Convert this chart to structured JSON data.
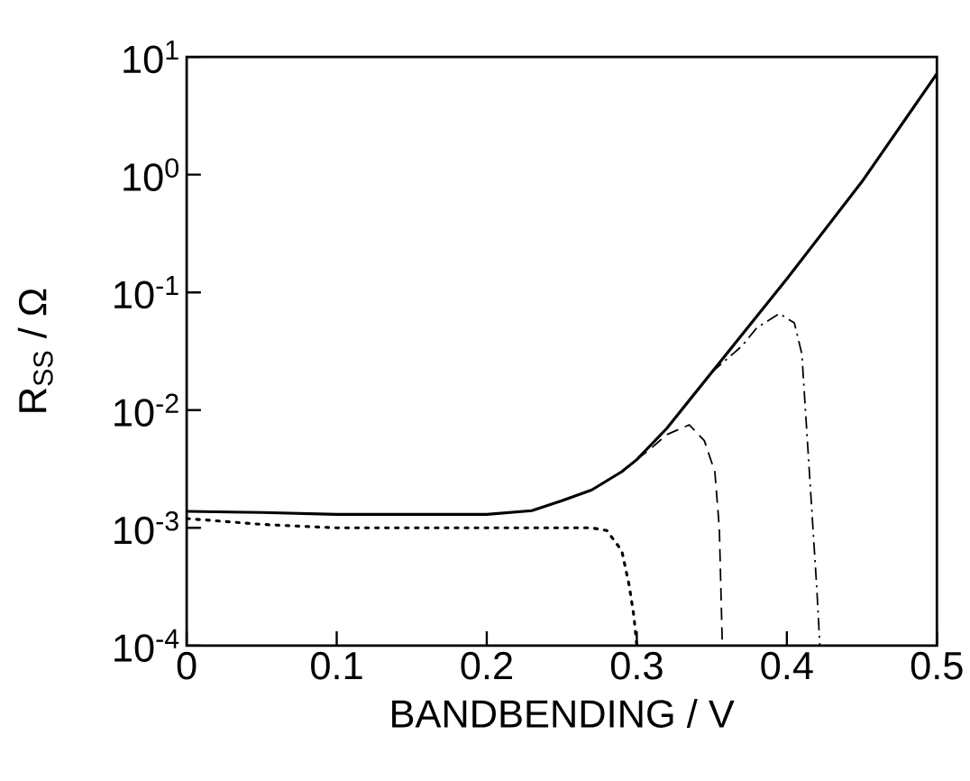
{
  "chart_data": {
    "type": "line",
    "xlabel": "BANDBENDING / V",
    "ylabel": "R$_{SS}$ / Ω",
    "log": "y",
    "xlim": [
      0,
      0.5
    ],
    "ylim": [
      0.0001,
      10
    ],
    "xticks": [
      {
        "value": 0,
        "label": "0"
      },
      {
        "value": 0.1,
        "label": "0.1"
      },
      {
        "value": 0.2,
        "label": "0.2"
      },
      {
        "value": 0.3,
        "label": "0.3"
      },
      {
        "value": 0.4,
        "label": "0.4"
      },
      {
        "value": 0.5,
        "label": "0.5"
      }
    ],
    "yticks": [
      {
        "value": 0.0001,
        "label": "10$^{-4}$"
      },
      {
        "value": 0.001,
        "label": "10$^{-3}$"
      },
      {
        "value": 0.01,
        "label": "10$^{-2}$"
      },
      {
        "value": 0.1,
        "label": "10$^{-1}$"
      },
      {
        "value": 1,
        "label": "10$^{0}$"
      },
      {
        "value": 10,
        "label": "10$^{1}$"
      }
    ],
    "grid": false,
    "marker": "none",
    "series": [
      {
        "color": "#000000",
        "line_style": "solid",
        "x": [
          0,
          0.05,
          0.1,
          0.15,
          0.2,
          0.23,
          0.25,
          0.27,
          0.29,
          0.3,
          0.32,
          0.35,
          0.4,
          0.45,
          0.5
        ],
        "values": [
          0.00138,
          0.00135,
          0.0013,
          0.0013,
          0.0013,
          0.0014,
          0.0017,
          0.0021,
          0.003,
          0.0038,
          0.007,
          0.021,
          0.13,
          0.87,
          7.2
        ]
      },
      {
        "color": "#000000",
        "line_style": "dotted",
        "x": [
          0,
          0.05,
          0.1,
          0.2,
          0.27,
          0.28,
          0.29,
          0.295,
          0.298,
          0.3
        ],
        "values": [
          0.0012,
          0.00107,
          0.001,
          0.001,
          0.001,
          0.00095,
          0.00064,
          0.00032,
          0.00018,
          0.0001
        ]
      },
      {
        "color": "#000000",
        "line_style": "dashed",
        "x": [
          0.3,
          0.31,
          0.32,
          0.335,
          0.345,
          0.352,
          0.355,
          0.357
        ],
        "values": [
          0.0038,
          0.0048,
          0.0062,
          0.0075,
          0.0055,
          0.003,
          0.001,
          0.0001
        ]
      },
      {
        "color": "#000000",
        "line_style": "dashdot",
        "x": [
          0.35,
          0.37,
          0.38,
          0.395,
          0.405,
          0.41,
          0.415,
          0.42,
          0.422
        ],
        "values": [
          0.021,
          0.035,
          0.05,
          0.066,
          0.055,
          0.03,
          0.003,
          0.0003,
          0.0001
        ]
      }
    ]
  }
}
